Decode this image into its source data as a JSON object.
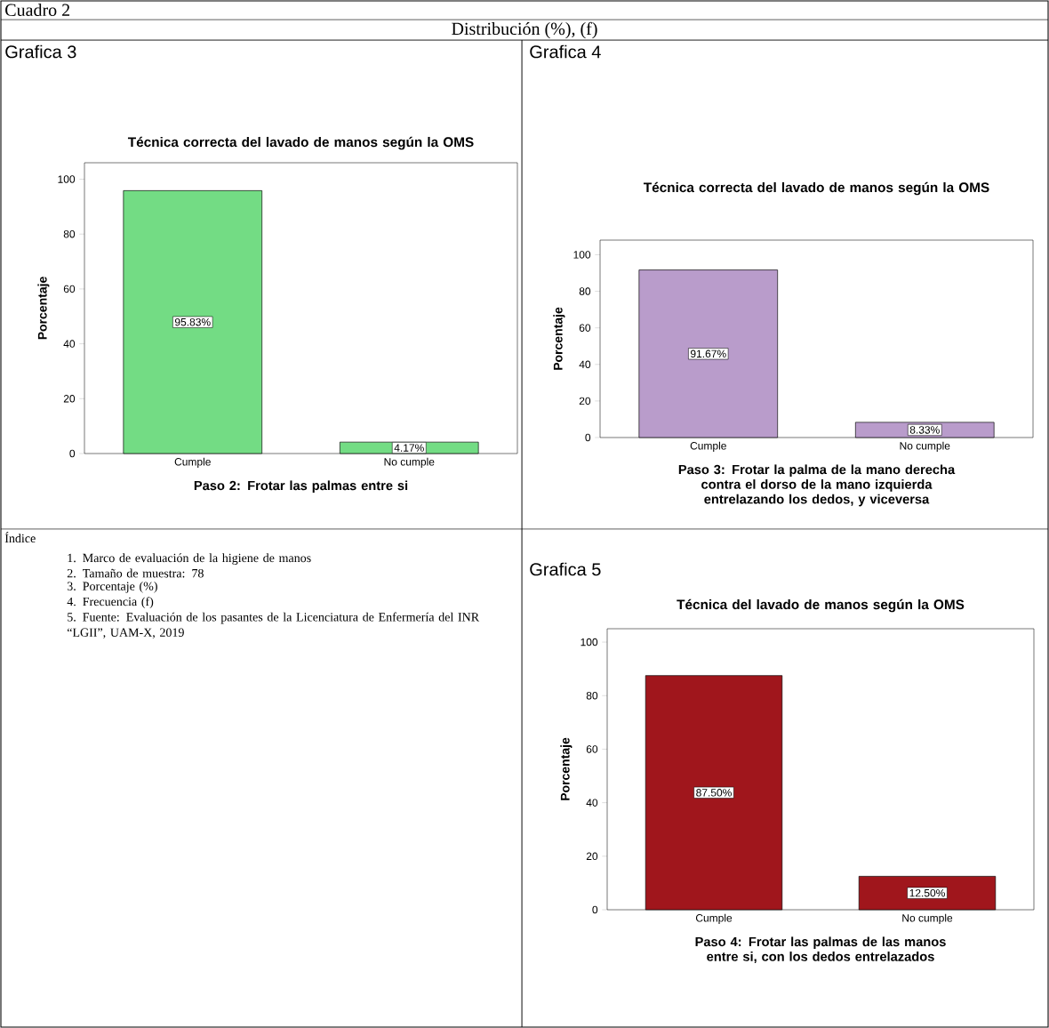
{
  "chart_data": [
    {
      "type": "other",
      "title": "Cuadro 2",
      "subtitle": "Distribución (%), (f)"
    },
    {
      "type": "bar",
      "title": "Técnica correcta del lavado de manos según la OMS",
      "annotations": [
        "Grafica 3"
      ],
      "xlabel": "Paso 2: Frotar las palmas entre si",
      "ylabel": "Porcentaje",
      "categories": [
        "Cumple",
        "No cumple"
      ],
      "values": [
        95.83,
        4.17
      ],
      "value_labels": [
        "95.83%",
        "4.17%"
      ],
      "color": "#73dc84",
      "ylim": [
        0,
        106
      ],
      "yticks": [
        0,
        20,
        40,
        60,
        80,
        100
      ]
    },
    {
      "type": "bar",
      "title": "Técnica correcta del lavado de manos según la OMS",
      "annotations": [
        "Grafica 4"
      ],
      "xlabel": "Paso 3: Frotar la palma de la mano derecha contra el dorso de la mano izquierda entrelazando los dedos, y viceversa",
      "ylabel": "Porcentaje",
      "categories": [
        "Cumple",
        "No cumple"
      ],
      "values": [
        91.67,
        8.33
      ],
      "value_labels": [
        "91.67%",
        "8.33%"
      ],
      "color": "#b99ccb",
      "ylim": [
        0,
        108
      ],
      "yticks": [
        0,
        20,
        40,
        60,
        80,
        100
      ]
    },
    {
      "type": "other",
      "title": "Índice",
      "annotations": [
        "1.   Marco de evaluación de la higiene de manos",
        "2.   Tamaño de muestra: 78",
        "3.   Porcentaje (%)",
        "4.   Frecuencia (f)",
        "5.   Fuente: Evaluación de los pasantes de la Licenciatura de Enfermería del INR “LGII”, UAM-X, 2019"
      ]
    },
    {
      "type": "bar",
      "title": "Técnica del lavado de manos según la OMS",
      "annotations": [
        "Grafica 5"
      ],
      "xlabel": "Paso 4: Frotar las palmas de las manos entre si, con los dedos entrelazados",
      "ylabel": "Porcentaje",
      "categories": [
        "Cumple",
        "No cumple"
      ],
      "values": [
        87.5,
        12.5
      ],
      "value_labels": [
        "87.50%",
        "12.50%"
      ],
      "color": "#a0161c",
      "ylim": [
        0,
        105
      ],
      "yticks": [
        0,
        20,
        40,
        60,
        80,
        100
      ]
    }
  ]
}
